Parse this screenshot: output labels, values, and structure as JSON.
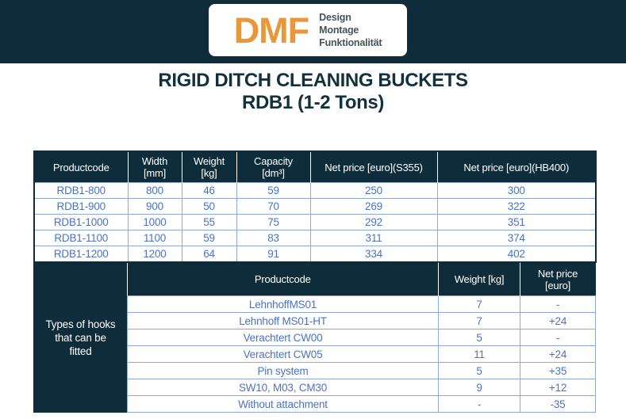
{
  "logo": {
    "text": "DMF",
    "tagline_lines": [
      "Design",
      "Montage",
      "Funktionalität"
    ]
  },
  "title": {
    "line1": "RIGID DITCH CLEANING BUCKETS",
    "line2": "RDB1 (1-2 Tons)"
  },
  "product_table": {
    "columns": [
      {
        "label": "Productcode",
        "unit": ""
      },
      {
        "label": "Width",
        "unit": "[mm]"
      },
      {
        "label": "Weight",
        "unit": "[kg]"
      },
      {
        "label": "Capacity",
        "unit": "[dm³]"
      },
      {
        "label": "Net price [euro](S355)",
        "unit": ""
      },
      {
        "label": "Net price [euro](HB400)",
        "unit": ""
      }
    ],
    "rows": [
      [
        "RDB1-800",
        "800",
        "46",
        "59",
        "250",
        "300"
      ],
      [
        "RDB1-900",
        "900",
        "50",
        "70",
        "269",
        "322"
      ],
      [
        "RDB1-1000",
        "1000",
        "55",
        "75",
        "292",
        "351"
      ],
      [
        "RDB1-1100",
        "1100",
        "59",
        "83",
        "311",
        "374"
      ],
      [
        "RDB1-1200",
        "1200",
        "64",
        "91",
        "334",
        "402"
      ]
    ]
  },
  "hooks_table": {
    "side_label_lines": [
      "Types of hooks",
      "that can be",
      "fitted"
    ],
    "columns": [
      {
        "label": "Productcode",
        "unit": ""
      },
      {
        "label": "Weight [kg]",
        "unit": ""
      },
      {
        "label": "Net price",
        "unit": "[euro]"
      }
    ],
    "rows": [
      [
        "LehnhoffMS01",
        "7",
        "-"
      ],
      [
        "Lehnhoff MS01-HT",
        "7",
        "+24"
      ],
      [
        "Verachtert CW00",
        "5",
        "-"
      ],
      [
        "Verachtert CW05",
        "11",
        "+24"
      ],
      [
        "Pin system",
        "5",
        "+35"
      ],
      [
        "SW10, M03, CM30",
        "9",
        "+12"
      ],
      [
        "Without attachment",
        "-",
        "-35"
      ]
    ]
  },
  "colors": {
    "navy": "#0e2c3a",
    "accent_blue": "#4a73c6",
    "border_blue": "#8ea8db",
    "logo_orange": "#e89839",
    "tagline_gray": "#49525a"
  }
}
